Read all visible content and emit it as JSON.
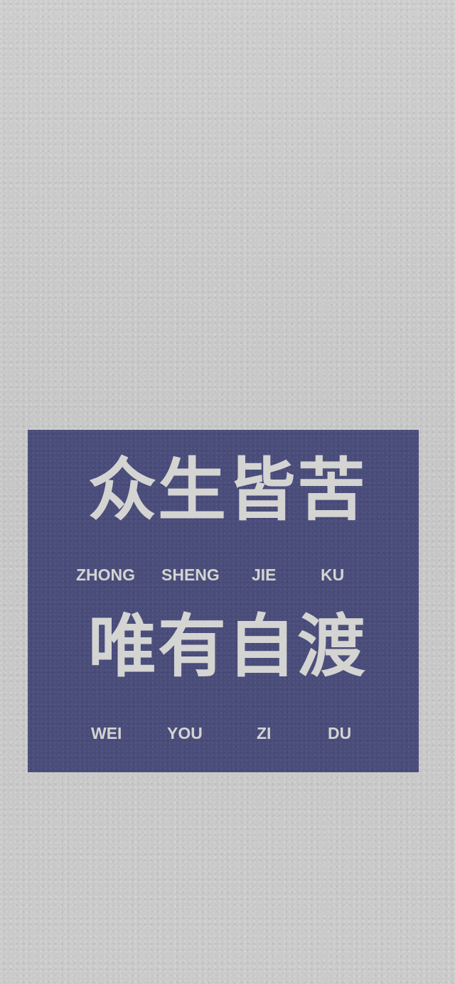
{
  "background_color": "#c9c9c9",
  "card_color": "#4a4d7a",
  "text_color": "#d4d4d2",
  "line1": {
    "hanzi": "众生皆苦",
    "pinyin": [
      "ZHONG",
      "SHENG",
      "JIE",
      "KU"
    ]
  },
  "line2": {
    "hanzi": "唯有自渡",
    "pinyin": [
      "WEI",
      "YOU",
      "ZI",
      "DU"
    ]
  }
}
